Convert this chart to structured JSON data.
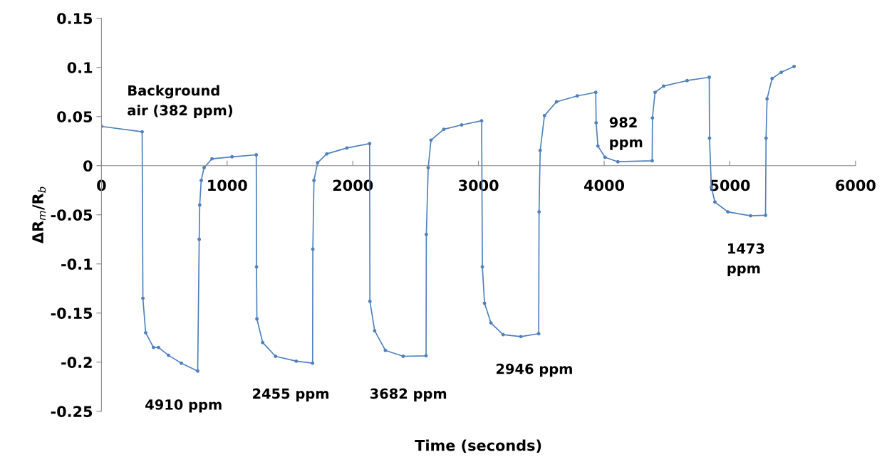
{
  "chart_data": {
    "type": "line",
    "xlabel": "Time (seconds)",
    "ylabel": "ΔR$_{m}$/R$_{b}$",
    "xlim": [
      0,
      6000
    ],
    "xticks": [
      0,
      1000,
      2000,
      3000,
      4000,
      5000,
      6000
    ],
    "ylim": [
      -0.25,
      0.15
    ],
    "yticks": [
      -0.25,
      -0.2,
      -0.15,
      -0.1,
      -0.05,
      0,
      0.05,
      0.1,
      0.15
    ],
    "grid": false,
    "legend": false,
    "marker": "circle",
    "line_style": "solid",
    "series": [
      {
        "color": "#4f81bd",
        "x": [
          0,
          324,
          330,
          352,
          414,
          454,
          534,
          636,
          766,
          778,
          782,
          794,
          817,
          880,
          1039,
          1232,
          1234,
          1237,
          1283,
          1385,
          1550,
          1680,
          1682,
          1691,
          1720,
          1793,
          1953,
          2134,
          2136,
          2174,
          2259,
          2401,
          2583,
          2585,
          2600,
          2622,
          2724,
          2866,
          3025,
          3031,
          3048,
          3099,
          3196,
          3337,
          3479,
          3482,
          3491,
          3525,
          3621,
          3786,
          3933,
          3936,
          3950,
          4007,
          4109,
          4382,
          4384,
          4405,
          4473,
          4660,
          4836,
          4838,
          4853,
          4881,
          4984,
          5165,
          5284,
          5288,
          5296,
          5336,
          5409,
          5511
        ],
        "values": [
          0.04,
          0.0345,
          -0.135,
          -0.17,
          -0.185,
          -0.185,
          -0.193,
          -0.201,
          -0.209,
          -0.075,
          -0.04,
          -0.015,
          -0.002,
          0.007,
          0.009,
          0.011,
          -0.103,
          -0.156,
          -0.18,
          -0.194,
          -0.199,
          -0.201,
          -0.085,
          -0.015,
          0.003,
          0.012,
          0.018,
          0.0225,
          -0.138,
          -0.168,
          -0.188,
          -0.194,
          -0.1935,
          -0.07,
          -0.002,
          0.026,
          0.037,
          0.0415,
          0.0457,
          -0.103,
          -0.14,
          -0.16,
          -0.172,
          -0.174,
          -0.171,
          -0.047,
          0.0155,
          0.051,
          0.065,
          0.071,
          0.0746,
          0.0437,
          0.02,
          0.0085,
          0.004,
          0.005,
          0.0486,
          0.0746,
          0.081,
          0.0866,
          0.09,
          0.028,
          -0.022,
          -0.037,
          -0.047,
          -0.051,
          -0.0505,
          0.028,
          0.068,
          0.0887,
          0.095,
          0.101
        ]
      }
    ],
    "annotations": [
      "Background\nair (382 ppm)",
      "4910 ppm",
      "2455 ppm",
      "3682 ppm",
      "2946 ppm",
      "982\nppm",
      "1473\nppm"
    ]
  }
}
